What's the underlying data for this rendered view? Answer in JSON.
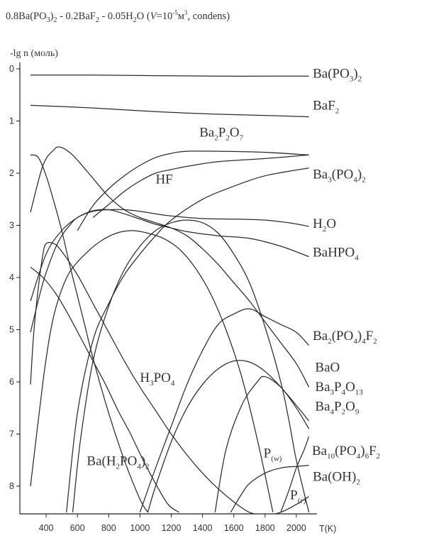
{
  "chart_data": {
    "type": "line",
    "title": "0.8Ba(PO3)2 - 0.2BaF2 - 0.05H2O  (V=10^-5 m^3, condens)",
    "ylabel": "-lg n (моль)",
    "xlabel": "T(K)",
    "xlim": [
      300,
      2100
    ],
    "ylim": [
      0,
      8.5
    ],
    "y_inverted": true,
    "grid": false,
    "x_ticks": [
      400,
      600,
      800,
      1000,
      1200,
      1400,
      1600,
      1800,
      2000
    ],
    "y_ticks": [
      0,
      1,
      2,
      3,
      4,
      5,
      6,
      7,
      8
    ],
    "series": [
      {
        "name": "Ba(PO3)2",
        "x": [
          300,
          700,
          1100,
          1500,
          1900,
          2080
        ],
        "y": [
          0.12,
          0.12,
          0.13,
          0.14,
          0.14,
          0.14
        ]
      },
      {
        "name": "BaF2",
        "x": [
          300,
          700,
          1100,
          1500,
          1900,
          2080
        ],
        "y": [
          0.7,
          0.75,
          0.82,
          0.87,
          0.9,
          0.92
        ]
      },
      {
        "name": "Ba2P2O7",
        "x": [
          600,
          700,
          800,
          900,
          1000,
          1100,
          1200,
          1300,
          1500,
          1800,
          2080
        ],
        "y": [
          3.1,
          2.62,
          2.3,
          2.05,
          1.85,
          1.7,
          1.62,
          1.58,
          1.58,
          1.6,
          1.65
        ]
      },
      {
        "name": "HF",
        "x": [
          700,
          800,
          900,
          1000,
          1100,
          1200,
          1300,
          1500,
          1800,
          2080
        ],
        "y": [
          2.85,
          2.6,
          2.35,
          2.15,
          2.0,
          1.93,
          1.87,
          1.78,
          1.72,
          1.65
        ]
      },
      {
        "name": "Ba3(PO4)2",
        "x": [
          530,
          600,
          700,
          800,
          900,
          1000,
          1100,
          1200,
          1400,
          1600,
          1800,
          2080
        ],
        "y": [
          8.5,
          6.6,
          5.2,
          4.5,
          3.95,
          3.55,
          3.2,
          2.9,
          2.5,
          2.25,
          2.05,
          1.9
        ]
      },
      {
        "name": "H2O",
        "x": [
          300,
          400,
          500,
          600,
          700,
          800,
          900,
          1000,
          1100,
          1200,
          1400,
          1600,
          1800,
          1950,
          2080
        ],
        "y": [
          4.45,
          3.55,
          3.1,
          2.85,
          2.73,
          2.7,
          2.7,
          2.73,
          2.78,
          2.82,
          2.87,
          2.88,
          2.9,
          2.95,
          3.02
        ]
      },
      {
        "name": "BaHPO4",
        "x": [
          300,
          380,
          450,
          500,
          550,
          600,
          700,
          800,
          900,
          1000,
          1100,
          1200,
          1300,
          1500,
          1700,
          1900,
          2080
        ],
        "y": [
          5.05,
          4.1,
          3.5,
          3.2,
          3.0,
          2.85,
          2.72,
          2.7,
          2.78,
          2.88,
          2.98,
          3.05,
          3.12,
          3.2,
          3.25,
          3.4,
          3.6
        ]
      },
      {
        "name": "Ba2(PO4)4F2",
        "x": [
          300,
          380,
          450,
          490,
          550,
          600,
          700,
          800,
          900,
          1000,
          1100,
          1200,
          1300,
          1400,
          1500,
          1600,
          1700,
          1800,
          1900,
          2000,
          2080
        ],
        "y": [
          2.75,
          1.85,
          1.55,
          1.5,
          1.6,
          1.75,
          2.1,
          2.45,
          2.7,
          2.85,
          2.95,
          3.05,
          3.2,
          3.45,
          3.75,
          4.1,
          4.45,
          4.85,
          5.25,
          5.65,
          6.1
        ]
      },
      {
        "name": "BaO",
        "x": [
          1480,
          1550,
          1650,
          1750,
          1800,
          1900,
          2000,
          2080
        ],
        "y": [
          8.5,
          7.3,
          6.45,
          6.0,
          5.9,
          6.1,
          6.5,
          6.9
        ]
      },
      {
        "name": "Ba3P4O13",
        "x": [
          300,
          320,
          350,
          380,
          400,
          450,
          500,
          600,
          700,
          800,
          900,
          1000,
          1100,
          1200,
          1300,
          1400,
          1500,
          1600,
          1700,
          1800,
          1900,
          2000,
          2080
        ],
        "y": [
          6.05,
          5.1,
          4.2,
          3.55,
          3.35,
          3.35,
          3.5,
          3.95,
          4.5,
          5.05,
          5.6,
          6.1,
          6.55,
          7.0,
          7.4,
          7.75,
          8.05,
          8.3,
          8.5,
          8.55,
          8.5,
          8.35,
          8.2
        ]
      },
      {
        "name": "Ba4P2O9",
        "x": [
          1050,
          1100,
          1200,
          1300,
          1400,
          1500,
          1600,
          1700,
          1800,
          1900,
          2000,
          2080
        ],
        "y": [
          8.5,
          8.0,
          7.15,
          6.5,
          6.05,
          5.75,
          5.6,
          5.62,
          5.8,
          6.1,
          6.45,
          6.75
        ]
      },
      {
        "name": "Ba10(PO4)6F2",
        "x": [
          570,
          620,
          700,
          800,
          900,
          1000,
          1100,
          1200,
          1300,
          1400,
          1500,
          1600,
          1700,
          1800,
          1900,
          1950,
          2000,
          2080
        ],
        "y": [
          8.5,
          7.1,
          5.6,
          4.55,
          3.85,
          3.4,
          3.1,
          2.95,
          2.9,
          2.95,
          3.15,
          3.55,
          4.1,
          4.95,
          6.0,
          6.7,
          7.5,
          8.5
        ]
      },
      {
        "name": "Ba(OH)2",
        "x": [
          1580,
          1650,
          1700,
          1800,
          1900,
          2000,
          2080
        ],
        "y": [
          8.5,
          8.15,
          7.95,
          7.75,
          7.65,
          7.62,
          7.6
        ]
      },
      {
        "name": "H3PO4",
        "x": [
          300,
          380,
          430,
          480,
          550,
          650,
          750,
          850,
          950,
          1050,
          1150,
          1250,
          1350,
          1450,
          1550,
          1650,
          1750,
          1850
        ],
        "y": [
          8.0,
          6.0,
          5.0,
          4.4,
          3.9,
          3.55,
          3.3,
          3.15,
          3.1,
          3.15,
          3.25,
          3.45,
          3.8,
          4.3,
          5.0,
          5.9,
          7.1,
          8.5
        ]
      },
      {
        "name": "Ba(H2PO4)2",
        "x": [
          300,
          350,
          400,
          450,
          500,
          550,
          600,
          650,
          700,
          800,
          900,
          1000,
          1050
        ],
        "y": [
          1.65,
          1.7,
          2.05,
          2.55,
          3.1,
          3.75,
          4.35,
          4.95,
          5.55,
          6.6,
          7.5,
          8.25,
          8.5
        ]
      },
      {
        "name": "P(w)",
        "x": [
          1000,
          1100,
          1200,
          1300,
          1400,
          1500,
          1600,
          1700,
          1800,
          1900,
          2000,
          2080
        ],
        "y": [
          8.5,
          7.65,
          6.85,
          6.05,
          5.4,
          4.9,
          4.7,
          4.6,
          4.75,
          4.9,
          5.05,
          5.3
        ]
      },
      {
        "name": "P(г)",
        "x": [
          1900,
          1950,
          2000,
          2050,
          2080
        ],
        "y": [
          8.5,
          8.1,
          7.65,
          7.3,
          7.05
        ]
      },
      {
        "name": "",
        "x": [
          300,
          380,
          460,
          540,
          620,
          700,
          780,
          860,
          940,
          1020,
          1100,
          1180,
          1250
        ],
        "y": [
          3.8,
          4.0,
          4.3,
          4.7,
          5.15,
          5.6,
          6.05,
          6.55,
          7.0,
          7.5,
          7.95,
          8.35,
          8.5
        ]
      }
    ],
    "labels": [
      {
        "parts": [
          {
            "t": "Ba(PO"
          },
          {
            "t": "3",
            "s": "sub"
          },
          {
            "t": ")"
          },
          {
            "t": "2",
            "s": "sub"
          }
        ],
        "x": 2105,
        "y": 0.17
      },
      {
        "parts": [
          {
            "t": "BaF"
          },
          {
            "t": "2",
            "s": "sub"
          }
        ],
        "x": 2105,
        "y": 0.78
      },
      {
        "parts": [
          {
            "t": "Ba"
          },
          {
            "t": "2",
            "s": "sub"
          },
          {
            "t": "P"
          },
          {
            "t": "2",
            "s": "sub"
          },
          {
            "t": "O"
          },
          {
            "t": "7",
            "s": "sub"
          }
        ],
        "x": 1380,
        "y": 1.3
      },
      {
        "parts": [
          {
            "t": "HF"
          }
        ],
        "x": 1100,
        "y": 2.2
      },
      {
        "parts": [
          {
            "t": "Ba"
          },
          {
            "t": "3",
            "s": "sub"
          },
          {
            "t": "(PO"
          },
          {
            "t": "4",
            "s": "sub"
          },
          {
            "t": ")"
          },
          {
            "t": "2",
            "s": "sub"
          }
        ],
        "x": 2105,
        "y": 2.1
      },
      {
        "parts": [
          {
            "t": "H"
          },
          {
            "t": "2",
            "s": "sub"
          },
          {
            "t": "O"
          }
        ],
        "x": 2105,
        "y": 3.05
      },
      {
        "parts": [
          {
            "t": "BaHPO"
          },
          {
            "t": "4",
            "s": "sub"
          }
        ],
        "x": 2105,
        "y": 3.6
      },
      {
        "parts": [
          {
            "t": "Ba"
          },
          {
            "t": "2",
            "s": "sub"
          },
          {
            "t": "(PO"
          },
          {
            "t": "4",
            "s": "sub"
          },
          {
            "t": ")"
          },
          {
            "t": "4",
            "s": "sub"
          },
          {
            "t": "F"
          },
          {
            "t": "2",
            "s": "sub"
          }
        ],
        "x": 2105,
        "y": 5.2
      },
      {
        "parts": [
          {
            "t": "H"
          },
          {
            "t": "3",
            "s": "sub"
          },
          {
            "t": "PO"
          },
          {
            "t": "4",
            "s": "sub"
          }
        ],
        "x": 1000,
        "y": 6.0
      },
      {
        "parts": [
          {
            "t": "BaO"
          }
        ],
        "x": 2120,
        "y": 5.8
      },
      {
        "parts": [
          {
            "t": "Ba"
          },
          {
            "t": "3",
            "s": "sub"
          },
          {
            "t": "P"
          },
          {
            "t": "4",
            "s": "sub"
          },
          {
            "t": "O"
          },
          {
            "t": "13",
            "s": "sub"
          }
        ],
        "x": 2120,
        "y": 6.18
      },
      {
        "parts": [
          {
            "t": "Ba"
          },
          {
            "t": "4",
            "s": "sub"
          },
          {
            "t": "P"
          },
          {
            "t": "2",
            "s": "sub"
          },
          {
            "t": "O"
          },
          {
            "t": "9",
            "s": "sub"
          }
        ],
        "x": 2120,
        "y": 6.55
      },
      {
        "parts": [
          {
            "t": "Ba(H"
          },
          {
            "t": "2",
            "s": "sub"
          },
          {
            "t": "PO"
          },
          {
            "t": "4",
            "s": "sub"
          },
          {
            "t": ")"
          },
          {
            "t": "2",
            "s": "sub"
          }
        ],
        "x": 660,
        "y": 7.6
      },
      {
        "parts": [
          {
            "t": "P"
          },
          {
            "t": "(w)",
            "s": "sub"
          }
        ],
        "x": 1790,
        "y": 7.45
      },
      {
        "parts": [
          {
            "t": "Ba"
          },
          {
            "t": "10",
            "s": "sub"
          },
          {
            "t": "(PO"
          },
          {
            "t": "4",
            "s": "sub"
          },
          {
            "t": ")"
          },
          {
            "t": "6",
            "s": "sub"
          },
          {
            "t": "F"
          },
          {
            "t": "2",
            "s": "sub"
          }
        ],
        "x": 2100,
        "y": 7.4
      },
      {
        "parts": [
          {
            "t": "Ba(OH)"
          },
          {
            "t": "2",
            "s": "sub"
          }
        ],
        "x": 2105,
        "y": 7.9
      },
      {
        "parts": [
          {
            "t": "P"
          },
          {
            "t": "(г)",
            "s": "sub"
          }
        ],
        "x": 1960,
        "y": 8.25
      }
    ]
  }
}
